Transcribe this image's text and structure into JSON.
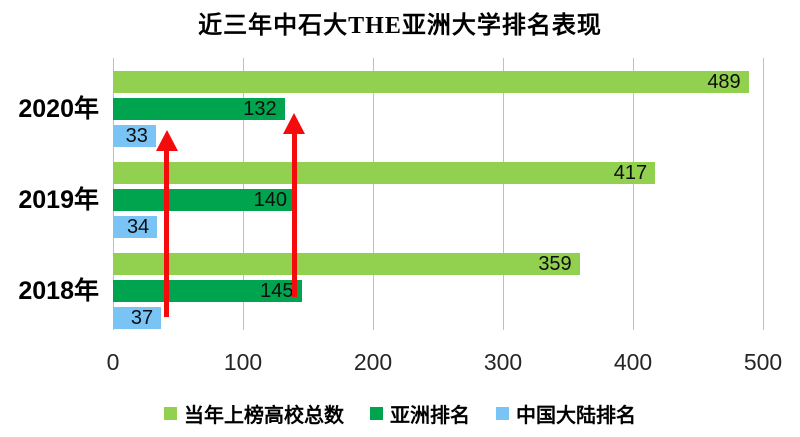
{
  "title": "近三年中石大THE亚洲大学排名表现",
  "chart_data": {
    "type": "bar",
    "orientation": "horizontal",
    "title": "近三年中石大THE亚洲大学排名表现",
    "categories": [
      "2020年",
      "2019年",
      "2018年"
    ],
    "series": [
      {
        "name": "当年上榜高校总数",
        "color": "#92D050",
        "values": [
          489,
          417,
          359
        ]
      },
      {
        "name": "亚洲排名",
        "color": "#00A44F",
        "values": [
          132,
          140,
          145
        ]
      },
      {
        "name": "中国大陆排名",
        "color": "#7AC3F5",
        "values": [
          33,
          34,
          37
        ]
      }
    ],
    "x_ticks": [
      0,
      100,
      200,
      300,
      400,
      500
    ],
    "xlim": [
      0,
      500
    ],
    "grid": "vertical",
    "gridline_color": "#BFBFBF",
    "legend_position": "bottom",
    "annotations": [
      {
        "name": "trend-arrow-mainland-rank",
        "type": "up-arrow",
        "color": "#F40B0B"
      },
      {
        "name": "trend-arrow-asia-rank",
        "type": "up-arrow",
        "color": "#F40B0B"
      }
    ]
  }
}
